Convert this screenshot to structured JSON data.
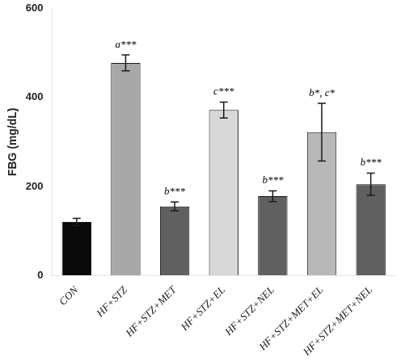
{
  "chart_data": {
    "type": "bar",
    "categories": [
      "CON",
      "HF+STZ",
      "HF+STZ+MET",
      "HF+STZ+EL",
      "HF+STZ+NEL",
      "HF+STZ+MET+EL",
      "HF+STZ+MET+NEL"
    ],
    "values": [
      120,
      478,
      155,
      372,
      178,
      322,
      205
    ],
    "errors": [
      8,
      18,
      10,
      18,
      12,
      65,
      25
    ],
    "colors": [
      "#0a0a0a",
      "#a8a8a8",
      "#606060",
      "#d8d8d8",
      "#606060",
      "#b8b8b8",
      "#606060"
    ],
    "annotations": [
      null,
      "a***",
      "b***",
      "c***",
      "b***",
      "b*, c*",
      "b***"
    ],
    "ylabel": "FBG (mg/dL)",
    "ylim": [
      0,
      600
    ],
    "yticks": [
      0,
      200,
      400,
      600
    ],
    "grid": false
  }
}
